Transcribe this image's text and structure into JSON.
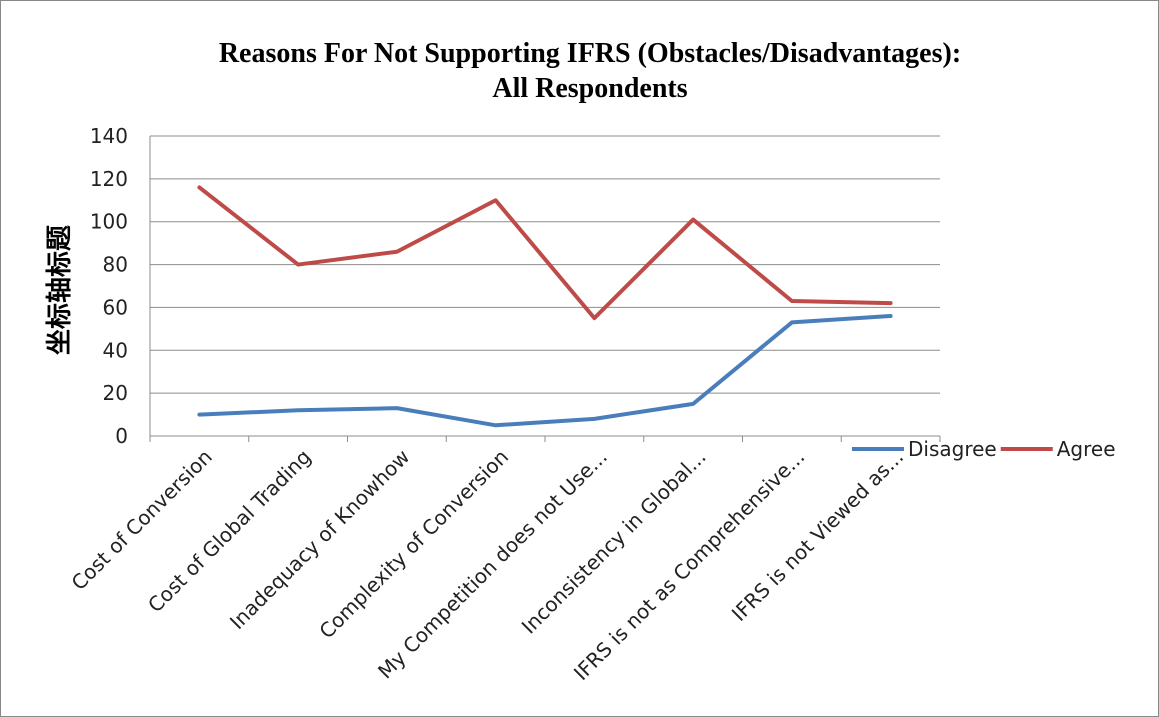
{
  "chart_data": {
    "type": "line",
    "title_line1": "Reasons For Not Supporting IFRS (Obstacles/Disadvantages):",
    "title_line2": "All Respondents",
    "ylabel": "坐标轴标题",
    "xlabel": "",
    "ylim": [
      0,
      140
    ],
    "yticks": [
      0,
      20,
      40,
      60,
      80,
      100,
      120,
      140
    ],
    "grid": true,
    "legend_position": "bottom-right",
    "categories": [
      "Cost of Conversion",
      "Cost of Global Trading",
      "Inadequacy of Knowhow",
      "Complexity of Conversion",
      "My Competition does not Use...",
      "Inconsistency in Global...",
      "IFRS is not as Comprehensive...",
      "IFRS is not Viewed as..."
    ],
    "series": [
      {
        "name": "Disagree",
        "color": "#4a7ebb",
        "values": [
          10,
          12,
          13,
          5,
          8,
          15,
          53,
          56
        ]
      },
      {
        "name": "Agree",
        "color": "#be4b48",
        "values": [
          116,
          80,
          86,
          110,
          55,
          101,
          63,
          62
        ]
      }
    ]
  }
}
